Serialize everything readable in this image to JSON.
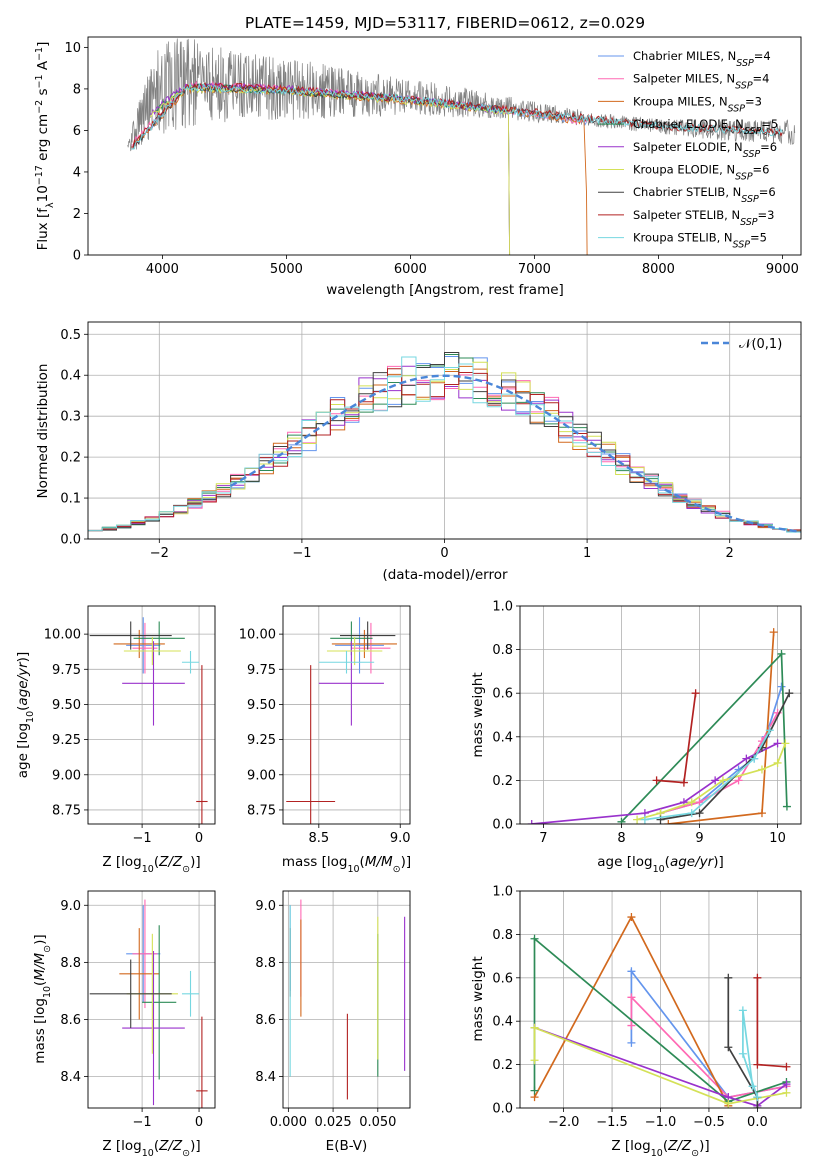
{
  "chart_data": [
    {
      "id": "spectrum",
      "type": "line",
      "title": "PLATE=1459, MJD=53117, FIBERID=0612, z=0.029",
      "xlabel": "wavelength [Angstrom, rest frame]",
      "ylabel": "Flux [f_λ 10^-17 erg cm^-2 s^-1 A^-1]",
      "xlim": [
        3400,
        9150
      ],
      "ylim": [
        0,
        10.5
      ],
      "xticks": [
        4000,
        5000,
        6000,
        7000,
        8000,
        9000
      ],
      "yticks": [
        0,
        2,
        4,
        6,
        8,
        10
      ],
      "data_color": "#808080",
      "data_envelope": {
        "x": [
          3720,
          3800,
          3900,
          4000,
          4200,
          4500,
          5000,
          5500,
          6000,
          6500,
          7000,
          7500,
          8000,
          8500,
          9000,
          9100
        ],
        "y": [
          5.0,
          6.3,
          7.3,
          8.1,
          8.3,
          8.2,
          8.0,
          7.8,
          7.6,
          7.3,
          6.9,
          6.5,
          6.2,
          6.0,
          5.9,
          5.9
        ],
        "noise_amplitude": [
          0.5,
          1.2,
          1.8,
          2.3,
          2.2,
          1.8,
          1.5,
          1.2,
          0.9,
          0.7,
          0.5,
          0.35,
          0.35,
          0.5,
          0.6,
          0.6
        ]
      },
      "legend_placement": "top-right",
      "series": [
        {
          "name": "Chabrier MILES, N_SSP=4",
          "color": "#6495ed",
          "x": [
            3750,
            4200,
            5000,
            6000,
            7000,
            7420
          ],
          "y": [
            5.2,
            8.1,
            7.9,
            7.5,
            6.8,
            6.4
          ]
        },
        {
          "name": "Salpeter MILES, N_SSP=4",
          "color": "#ff69b4",
          "x": [
            3750,
            4200,
            5000,
            6000,
            7000,
            7420
          ],
          "y": [
            5.3,
            8.2,
            8.0,
            7.5,
            6.8,
            6.4
          ]
        },
        {
          "name": "Kroupa MILES, N_SSP=3",
          "color": "#d2691e",
          "x": [
            3750,
            4200,
            5000,
            6000,
            7000,
            7400,
            7420,
            7425
          ],
          "y": [
            5.2,
            8.0,
            7.9,
            7.4,
            6.8,
            6.4,
            3.0,
            0
          ]
        },
        {
          "name": "Chabrier ELODIE, N_SSP=5",
          "color": "#2e8b57",
          "x": [
            3900,
            4200,
            5000,
            6000,
            6790,
            6800
          ],
          "y": [
            6.8,
            8.1,
            7.9,
            7.5,
            6.9,
            0
          ]
        },
        {
          "name": "Salpeter ELODIE, N_SSP=6",
          "color": "#9932cc",
          "x": [
            3900,
            4200,
            5000,
            6000,
            6790,
            6800
          ],
          "y": [
            6.8,
            8.2,
            8.0,
            7.5,
            6.9,
            0
          ]
        },
        {
          "name": "Kroupa ELODIE, N_SSP=6",
          "color": "#d4e157",
          "x": [
            3900,
            4200,
            5000,
            6000,
            6790,
            6800
          ],
          "y": [
            6.7,
            8.0,
            7.9,
            7.4,
            6.9,
            0
          ]
        },
        {
          "name": "Chabrier STELIB, N_SSP=6",
          "color": "#404040",
          "x": [
            3750,
            4200,
            5000,
            6000,
            7000,
            8000,
            9000
          ],
          "y": [
            5.1,
            8.1,
            7.9,
            7.5,
            6.8,
            6.2,
            5.9
          ]
        },
        {
          "name": "Salpeter STELIB, N_SSP=3",
          "color": "#b22222",
          "x": [
            3750,
            4200,
            5000,
            6000,
            7000,
            8000,
            9000
          ],
          "y": [
            5.2,
            8.2,
            8.0,
            7.5,
            6.9,
            6.2,
            5.9
          ]
        },
        {
          "name": "Kroupa STELIB, N_SSP=5",
          "color": "#76d7e0",
          "x": [
            3750,
            4200,
            5000,
            6000,
            7000,
            8000,
            9000
          ],
          "y": [
            5.1,
            8.1,
            7.9,
            7.5,
            6.8,
            6.2,
            5.9
          ]
        }
      ]
    },
    {
      "id": "residuals",
      "type": "line",
      "xlabel": "(data-model)/error",
      "ylabel": "Normed distribution",
      "xlim": [
        -2.5,
        2.5
      ],
      "ylim": [
        0,
        0.53
      ],
      "xticks": [
        -2,
        -1,
        0,
        1,
        2
      ],
      "yticks": [
        0.0,
        0.1,
        0.2,
        0.3,
        0.4,
        0.5
      ],
      "grid": true,
      "bins": {
        "start": -2.5,
        "width": 0.1,
        "count": 50
      },
      "gaussian": {
        "label": "𝒩(0,1)",
        "color": "#4a86d8",
        "style": "dashed",
        "mean": 0,
        "sigma": 1
      },
      "legend_placement": "top-right",
      "series_colors": [
        "#6495ed",
        "#ff69b4",
        "#d2691e",
        "#2e8b57",
        "#9932cc",
        "#d4e157",
        "#404040",
        "#b22222",
        "#76d7e0"
      ]
    },
    {
      "id": "age_vs_Z",
      "type": "errorbar",
      "xlabel": "Z [log10(Z/Z⊙)]",
      "ylabel": "age  [log10(age/yr)]",
      "xlim": [
        -1.95,
        0.28
      ],
      "ylim": [
        8.65,
        10.2
      ],
      "xticks": [
        -1,
        0
      ],
      "yticks": [
        8.75,
        9.0,
        9.25,
        9.5,
        9.75,
        10.0
      ],
      "grid": true,
      "points": [
        {
          "color": "#6495ed",
          "x": -0.98,
          "xerr": 0.3,
          "y": 9.92,
          "yerr": 0.2
        },
        {
          "color": "#ff69b4",
          "x": -0.95,
          "xerr": 0.22,
          "y": 9.9,
          "yerr": 0.18
        },
        {
          "color": "#d2691e",
          "x": -1.05,
          "xerr": 0.45,
          "y": 9.93,
          "yerr": 0.1
        },
        {
          "color": "#2e8b57",
          "x": -0.7,
          "xerr": 0.45,
          "y": 9.97,
          "yerr": 0.12
        },
        {
          "color": "#9932cc",
          "x": -0.8,
          "xerr": 0.55,
          "y": 9.65,
          "yerr": 0.3
        },
        {
          "color": "#d4e157",
          "x": -0.82,
          "xerr": 0.5,
          "y": 9.88,
          "yerr": 0.1
        },
        {
          "color": "#404040",
          "x": -1.2,
          "xerr": 0.72,
          "y": 9.99,
          "yerr": 0.1
        },
        {
          "color": "#b22222",
          "x": 0.05,
          "xerr": 0.1,
          "y": 8.81,
          "yerr": 0.97
        },
        {
          "color": "#76d7e0",
          "x": -0.15,
          "xerr": 0.15,
          "y": 9.8,
          "yerr": 0.08
        }
      ]
    },
    {
      "id": "age_vs_mass",
      "type": "errorbar",
      "xlabel": "mass [log10(M/M⊙)]",
      "xlim": [
        8.28,
        9.06
      ],
      "ylim": [
        8.65,
        10.2
      ],
      "xticks": [
        8.5,
        9.0
      ],
      "yticks": [
        8.75,
        9.0,
        9.25,
        9.5,
        9.75,
        10.0
      ],
      "grid": true,
      "points": [
        {
          "color": "#6495ed",
          "x": 8.75,
          "xerr": 0.15,
          "y": 9.92,
          "yerr": 0.2
        },
        {
          "color": "#ff69b4",
          "x": 8.82,
          "xerr": 0.12,
          "y": 9.9,
          "yerr": 0.18
        },
        {
          "color": "#d2691e",
          "x": 8.78,
          "xerr": 0.2,
          "y": 9.93,
          "yerr": 0.1
        },
        {
          "color": "#2e8b57",
          "x": 8.7,
          "xerr": 0.13,
          "y": 9.97,
          "yerr": 0.12
        },
        {
          "color": "#9932cc",
          "x": 8.7,
          "xerr": 0.2,
          "y": 9.65,
          "yerr": 0.3
        },
        {
          "color": "#d4e157",
          "x": 8.72,
          "xerr": 0.17,
          "y": 9.88,
          "yerr": 0.1
        },
        {
          "color": "#404040",
          "x": 8.8,
          "xerr": 0.17,
          "y": 9.99,
          "yerr": 0.1
        },
        {
          "color": "#b22222",
          "x": 8.45,
          "xerr": 0.15,
          "y": 8.81,
          "yerr": 0.97
        },
        {
          "color": "#76d7e0",
          "x": 8.67,
          "xerr": 0.17,
          "y": 9.8,
          "yerr": 0.08
        }
      ]
    },
    {
      "id": "massweight_vs_age",
      "type": "line",
      "xlabel": "age  [log10(age/yr)]",
      "ylabel": "mass weight",
      "xlim": [
        6.7,
        10.3
      ],
      "ylim": [
        0,
        1.0
      ],
      "xticks": [
        7,
        8,
        9,
        10
      ],
      "yticks": [
        0.0,
        0.2,
        0.4,
        0.6,
        0.8,
        1.0
      ],
      "grid": true,
      "series": [
        {
          "color": "#6495ed",
          "x": [
            8.5,
            9.0,
            9.5,
            9.7,
            9.85,
            10.05
          ],
          "y": [
            0.05,
            0.1,
            0.25,
            0.3,
            0.4,
            0.63
          ]
        },
        {
          "color": "#ff69b4",
          "x": [
            8.5,
            9.0,
            9.5,
            9.8,
            10.0
          ],
          "y": [
            0.05,
            0.1,
            0.2,
            0.38,
            0.51
          ]
        },
        {
          "color": "#d2691e",
          "x": [
            8.6,
            9.8,
            9.95
          ],
          "y": [
            0.0,
            0.05,
            0.88
          ]
        },
        {
          "color": "#2e8b57",
          "x": [
            8.0,
            10.05,
            10.12
          ],
          "y": [
            0.01,
            0.78,
            0.08
          ]
        },
        {
          "color": "#9932cc",
          "x": [
            6.85,
            8.3,
            8.8,
            9.2,
            9.6,
            10.0
          ],
          "y": [
            0.0,
            0.05,
            0.1,
            0.2,
            0.3,
            0.37
          ]
        },
        {
          "color": "#d4e157",
          "x": [
            8.2,
            8.5,
            8.9,
            9.3,
            9.8,
            10.0,
            10.1
          ],
          "y": [
            0.02,
            0.05,
            0.1,
            0.2,
            0.25,
            0.28,
            0.37
          ]
        },
        {
          "color": "#404040",
          "x": [
            8.5,
            9.0,
            9.8,
            10.15
          ],
          "y": [
            0.02,
            0.05,
            0.35,
            0.6
          ]
        },
        {
          "color": "#b22222",
          "x": [
            8.45,
            8.8,
            8.95
          ],
          "y": [
            0.2,
            0.19,
            0.6
          ]
        },
        {
          "color": "#76d7e0",
          "x": [
            8.3,
            8.9,
            9.7,
            9.9
          ],
          "y": [
            0.02,
            0.05,
            0.3,
            0.43
          ]
        }
      ]
    },
    {
      "id": "mass_vs_Z",
      "type": "errorbar",
      "xlabel": "Z [log10(Z/Z⊙)]",
      "ylabel": "mass [log10(M/M⊙)]",
      "xlim": [
        -1.95,
        0.28
      ],
      "ylim": [
        8.29,
        9.05
      ],
      "xticks": [
        -1,
        0
      ],
      "yticks": [
        8.4,
        8.6,
        8.8,
        9.0
      ],
      "grid": true,
      "points": [
        {
          "color": "#6495ed",
          "x": -0.98,
          "xerr": 0.3,
          "y": 8.83,
          "yerr": 0.17
        },
        {
          "color": "#ff69b4",
          "x": -0.95,
          "xerr": 0.22,
          "y": 8.83,
          "yerr": 0.19
        },
        {
          "color": "#d2691e",
          "x": -1.05,
          "xerr": 0.35,
          "y": 8.76,
          "yerr": 0.16
        },
        {
          "color": "#2e8b57",
          "x": -0.7,
          "xerr": 0.3,
          "y": 8.66,
          "yerr": 0.27
        },
        {
          "color": "#9932cc",
          "x": -0.8,
          "xerr": 0.55,
          "y": 8.57,
          "yerr": 0.27
        },
        {
          "color": "#d4e157",
          "x": -0.82,
          "xerr": 0.45,
          "y": 8.69,
          "yerr": 0.21
        },
        {
          "color": "#404040",
          "x": -1.2,
          "xerr": 0.72,
          "y": 8.69,
          "yerr": 0.12
        },
        {
          "color": "#b22222",
          "x": 0.05,
          "xerr": 0.1,
          "y": 8.35,
          "yerr": 0.26
        },
        {
          "color": "#76d7e0",
          "x": -0.15,
          "xerr": 0.15,
          "y": 8.69,
          "yerr": 0.08
        }
      ]
    },
    {
      "id": "mass_vs_EBV",
      "type": "errorbar",
      "xlabel": "E(B-V)",
      "xlim": [
        -0.003,
        0.068
      ],
      "ylim": [
        8.29,
        9.05
      ],
      "xticks": [
        0.0,
        0.025,
        0.05
      ],
      "xticklabels": [
        "0.000",
        "0.025",
        "0.050"
      ],
      "yticks": [
        8.4,
        8.6,
        8.8,
        9.0
      ],
      "grid": true,
      "points": [
        {
          "color": "#6495ed",
          "x": 0.001,
          "y": 8.85,
          "yerr": 0.15
        },
        {
          "color": "#ff69b4",
          "x": 0.007,
          "y": 8.85,
          "yerr": 0.17
        },
        {
          "color": "#d2691e",
          "x": 0.007,
          "y": 8.78,
          "yerr": 0.17
        },
        {
          "color": "#2e8b57",
          "x": 0.05,
          "y": 8.65,
          "yerr": 0.25
        },
        {
          "color": "#9932cc",
          "x": 0.065,
          "y": 8.69,
          "yerr": 0.27
        },
        {
          "color": "#d4e157",
          "x": 0.05,
          "y": 8.71,
          "yerr": 0.25
        },
        {
          "color": "#404040",
          "x": 0.001,
          "y": 8.8,
          "yerr": 0.12
        },
        {
          "color": "#b22222",
          "x": 0.033,
          "y": 8.47,
          "yerr": 0.15
        },
        {
          "color": "#76d7e0",
          "x": 0.001,
          "y": 8.7,
          "yerr": 0.3
        }
      ]
    },
    {
      "id": "massweight_vs_Z",
      "type": "line",
      "xlabel": "Z [log10(Z/Z⊙)]",
      "ylabel": "mass weight",
      "xlim": [
        -2.45,
        0.45
      ],
      "ylim": [
        0,
        1.0
      ],
      "xticks": [
        -2.0,
        -1.5,
        -1.0,
        -0.5,
        0.0
      ],
      "yticks": [
        0.0,
        0.2,
        0.4,
        0.6,
        0.8,
        1.0
      ],
      "grid": true,
      "series": [
        {
          "color": "#6495ed",
          "x": [
            -1.3,
            -1.3,
            -0.3,
            0.3
          ],
          "y": [
            0.3,
            0.63,
            0.05,
            0.1
          ]
        },
        {
          "color": "#ff69b4",
          "x": [
            -1.3,
            -1.3,
            -0.3,
            0.3
          ],
          "y": [
            0.38,
            0.51,
            0.05,
            0.1
          ]
        },
        {
          "color": "#d2691e",
          "x": [
            -2.3,
            -1.3,
            -0.3
          ],
          "y": [
            0.05,
            0.88,
            0.01
          ]
        },
        {
          "color": "#2e8b57",
          "x": [
            -2.3,
            -2.3,
            -0.3,
            0.3
          ],
          "y": [
            0.08,
            0.78,
            0.03,
            0.12
          ]
        },
        {
          "color": "#9932cc",
          "x": [
            -2.3,
            -0.3,
            0.0,
            0.3
          ],
          "y": [
            0.37,
            0.05,
            0.01,
            0.11
          ]
        },
        {
          "color": "#d4e157",
          "x": [
            -2.3,
            -2.3,
            -0.3,
            0.3
          ],
          "y": [
            0.22,
            0.37,
            0.02,
            0.07
          ]
        },
        {
          "color": "#404040",
          "x": [
            -0.3,
            -0.3,
            0.0,
            0.0
          ],
          "y": [
            0.6,
            0.28,
            0.05,
            0.0
          ]
        },
        {
          "color": "#b22222",
          "x": [
            0.0,
            0.0,
            0.3
          ],
          "y": [
            0.6,
            0.2,
            0.19
          ]
        },
        {
          "color": "#76d7e0",
          "x": [
            -0.05,
            -0.15,
            -0.15,
            0.0
          ],
          "y": [
            0.1,
            0.45,
            0.25,
            0.05
          ]
        }
      ]
    }
  ]
}
